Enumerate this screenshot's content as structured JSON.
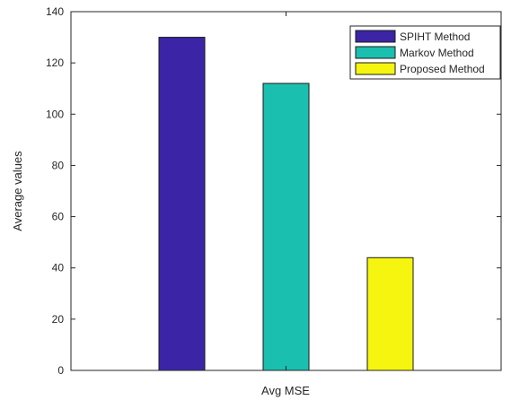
{
  "chart_data": {
    "type": "bar",
    "categories": [
      "Avg MSE"
    ],
    "series": [
      {
        "name": "SPIHT Method",
        "values": [
          130
        ],
        "color": "#3B25A6"
      },
      {
        "name": "Markov Method",
        "values": [
          112
        ],
        "color": "#1BBFB0"
      },
      {
        "name": "Proposed Method",
        "values": [
          44
        ],
        "color": "#F5F50F"
      }
    ],
    "xlabel": "Avg MSE",
    "ylabel": "Average values",
    "ylim": [
      0,
      140
    ],
    "yticks": [
      "0",
      "20",
      "40",
      "60",
      "80",
      "100",
      "120",
      "140"
    ],
    "grid": false,
    "legend_position": "top-right"
  }
}
